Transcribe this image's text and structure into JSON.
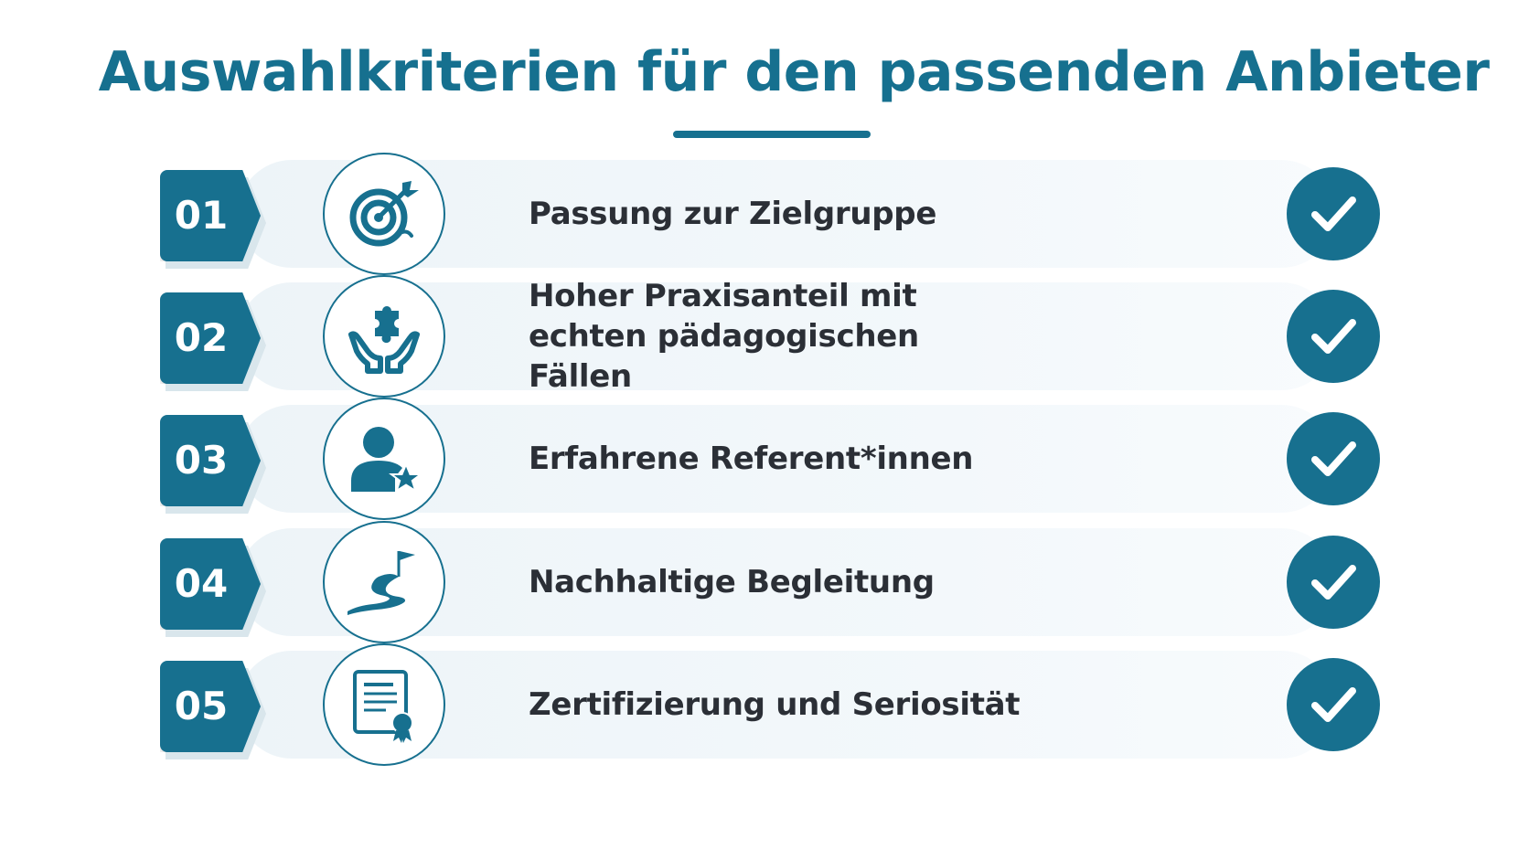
{
  "title": "Auswahlkriterien für den passenden Anbieter",
  "colors": {
    "accent": "#17708f",
    "text": "#2b2f36",
    "band": "#eef5f9"
  },
  "criteria": [
    {
      "number": "01",
      "icon": "target-icon",
      "label": "Passung zur Zielgruppe"
    },
    {
      "number": "02",
      "icon": "hands-puzzle-icon",
      "label": "Hoher Praxisanteil mit echten pädagogischen Fällen"
    },
    {
      "number": "03",
      "icon": "person-star-icon",
      "label": "Erfahrene Referent*innen"
    },
    {
      "number": "04",
      "icon": "path-flag-icon",
      "label": "Nachhaltige Begleitung"
    },
    {
      "number": "05",
      "icon": "certificate-icon",
      "label": "Zertifizierung und Seriosität"
    }
  ]
}
